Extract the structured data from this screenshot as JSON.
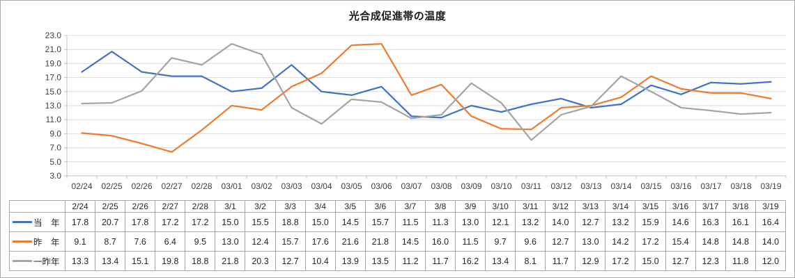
{
  "chart_data": {
    "type": "line",
    "title": "光合成促進帯の温度",
    "x_axis_labels": [
      "02/24",
      "02/25",
      "02/26",
      "02/27",
      "02/28",
      "03/01",
      "03/02",
      "03/03",
      "03/04",
      "03/05",
      "03/06",
      "03/07",
      "03/08",
      "03/09",
      "03/10",
      "03/11",
      "03/12",
      "03/13",
      "03/14",
      "03/15",
      "03/16",
      "03/17",
      "03/18",
      "03/19"
    ],
    "table_column_headers": [
      "2/24",
      "2/25",
      "2/26",
      "2/27",
      "2/28",
      "3/1",
      "3/2",
      "3/3",
      "3/4",
      "3/5",
      "3/6",
      "3/7",
      "3/8",
      "3/9",
      "3/10",
      "3/11",
      "3/12",
      "3/13",
      "3/14",
      "3/15",
      "3/16",
      "3/17",
      "3/18",
      "3/19"
    ],
    "series": [
      {
        "id": "current-year",
        "name": "当　年",
        "color": "#4472C4",
        "values": [
          17.8,
          20.7,
          17.8,
          17.2,
          17.2,
          15.0,
          15.5,
          18.8,
          15.0,
          14.5,
          15.7,
          11.5,
          11.3,
          13.0,
          12.1,
          13.2,
          14.0,
          12.7,
          13.2,
          15.9,
          14.6,
          16.3,
          16.1,
          16.4
        ]
      },
      {
        "id": "last-year",
        "name": "昨　年",
        "color": "#ED7D31",
        "values": [
          9.1,
          8.7,
          7.6,
          6.4,
          9.5,
          13.0,
          12.4,
          15.7,
          17.6,
          21.6,
          21.8,
          14.5,
          16.0,
          11.5,
          9.7,
          9.6,
          12.7,
          13.0,
          14.2,
          17.2,
          15.4,
          14.8,
          14.8,
          14.0
        ]
      },
      {
        "id": "two-years-ago",
        "name": "一昨年",
        "color": "#A5A5A5",
        "values": [
          13.3,
          13.4,
          15.1,
          19.8,
          18.8,
          21.8,
          20.3,
          12.7,
          10.4,
          13.9,
          13.5,
          11.2,
          11.7,
          16.2,
          13.4,
          8.1,
          11.7,
          12.9,
          17.2,
          15.0,
          12.7,
          12.3,
          11.8,
          12.0
        ]
      }
    ],
    "ylim": [
      3.0,
      23.0
    ],
    "ytick_step": 2.0,
    "yticks": [
      "23.0",
      "21.0",
      "19.0",
      "17.0",
      "15.0",
      "13.0",
      "11.0",
      "9.0",
      "7.0",
      "5.0",
      "3.0"
    ],
    "grid": true,
    "legend_position": "table-left"
  },
  "colors": {
    "series_blue": "#4472C4",
    "series_orange": "#ED7D31",
    "series_gray": "#A5A5A5",
    "gridline": "#D9D9D9",
    "axis_line": "#BFBFBF",
    "table_border": "#A6A6A6",
    "text": "#262626"
  }
}
